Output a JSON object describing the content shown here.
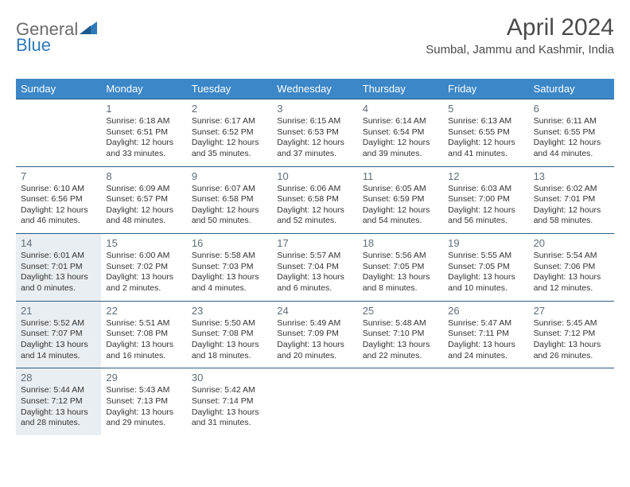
{
  "brand": {
    "part1": "General",
    "part2": "Blue"
  },
  "title": "April 2024",
  "location": "Sumbal, Jammu and Kashmir, India",
  "colors": {
    "header_bg": "#3b87c8",
    "header_text": "#ffffff",
    "border": "#2e5d82",
    "daynum": "#5f6e7a",
    "highlight_bg": "#e9eef2",
    "logo_gray": "#6b6b6b",
    "logo_blue": "#2e79b8"
  },
  "day_names": [
    "Sunday",
    "Monday",
    "Tuesday",
    "Wednesday",
    "Thursday",
    "Friday",
    "Saturday"
  ],
  "weeks": [
    [
      {
        "day": "",
        "lines": []
      },
      {
        "day": "1",
        "lines": [
          "Sunrise: 6:18 AM",
          "Sunset: 6:51 PM",
          "Daylight: 12 hours",
          "and 33 minutes."
        ]
      },
      {
        "day": "2",
        "lines": [
          "Sunrise: 6:17 AM",
          "Sunset: 6:52 PM",
          "Daylight: 12 hours",
          "and 35 minutes."
        ]
      },
      {
        "day": "3",
        "lines": [
          "Sunrise: 6:15 AM",
          "Sunset: 6:53 PM",
          "Daylight: 12 hours",
          "and 37 minutes."
        ]
      },
      {
        "day": "4",
        "lines": [
          "Sunrise: 6:14 AM",
          "Sunset: 6:54 PM",
          "Daylight: 12 hours",
          "and 39 minutes."
        ]
      },
      {
        "day": "5",
        "lines": [
          "Sunrise: 6:13 AM",
          "Sunset: 6:55 PM",
          "Daylight: 12 hours",
          "and 41 minutes."
        ]
      },
      {
        "day": "6",
        "lines": [
          "Sunrise: 6:11 AM",
          "Sunset: 6:55 PM",
          "Daylight: 12 hours",
          "and 44 minutes."
        ]
      }
    ],
    [
      {
        "day": "7",
        "lines": [
          "Sunrise: 6:10 AM",
          "Sunset: 6:56 PM",
          "Daylight: 12 hours",
          "and 46 minutes."
        ]
      },
      {
        "day": "8",
        "lines": [
          "Sunrise: 6:09 AM",
          "Sunset: 6:57 PM",
          "Daylight: 12 hours",
          "and 48 minutes."
        ]
      },
      {
        "day": "9",
        "lines": [
          "Sunrise: 6:07 AM",
          "Sunset: 6:58 PM",
          "Daylight: 12 hours",
          "and 50 minutes."
        ]
      },
      {
        "day": "10",
        "lines": [
          "Sunrise: 6:06 AM",
          "Sunset: 6:58 PM",
          "Daylight: 12 hours",
          "and 52 minutes."
        ]
      },
      {
        "day": "11",
        "lines": [
          "Sunrise: 6:05 AM",
          "Sunset: 6:59 PM",
          "Daylight: 12 hours",
          "and 54 minutes."
        ]
      },
      {
        "day": "12",
        "lines": [
          "Sunrise: 6:03 AM",
          "Sunset: 7:00 PM",
          "Daylight: 12 hours",
          "and 56 minutes."
        ]
      },
      {
        "day": "13",
        "lines": [
          "Sunrise: 6:02 AM",
          "Sunset: 7:01 PM",
          "Daylight: 12 hours",
          "and 58 minutes."
        ]
      }
    ],
    [
      {
        "day": "14",
        "highlight": true,
        "lines": [
          "Sunrise: 6:01 AM",
          "Sunset: 7:01 PM",
          "Daylight: 13 hours",
          "and 0 minutes."
        ]
      },
      {
        "day": "15",
        "lines": [
          "Sunrise: 6:00 AM",
          "Sunset: 7:02 PM",
          "Daylight: 13 hours",
          "and 2 minutes."
        ]
      },
      {
        "day": "16",
        "lines": [
          "Sunrise: 5:58 AM",
          "Sunset: 7:03 PM",
          "Daylight: 13 hours",
          "and 4 minutes."
        ]
      },
      {
        "day": "17",
        "lines": [
          "Sunrise: 5:57 AM",
          "Sunset: 7:04 PM",
          "Daylight: 13 hours",
          "and 6 minutes."
        ]
      },
      {
        "day": "18",
        "lines": [
          "Sunrise: 5:56 AM",
          "Sunset: 7:05 PM",
          "Daylight: 13 hours",
          "and 8 minutes."
        ]
      },
      {
        "day": "19",
        "lines": [
          "Sunrise: 5:55 AM",
          "Sunset: 7:05 PM",
          "Daylight: 13 hours",
          "and 10 minutes."
        ]
      },
      {
        "day": "20",
        "lines": [
          "Sunrise: 5:54 AM",
          "Sunset: 7:06 PM",
          "Daylight: 13 hours",
          "and 12 minutes."
        ]
      }
    ],
    [
      {
        "day": "21",
        "highlight": true,
        "lines": [
          "Sunrise: 5:52 AM",
          "Sunset: 7:07 PM",
          "Daylight: 13 hours",
          "and 14 minutes."
        ]
      },
      {
        "day": "22",
        "lines": [
          "Sunrise: 5:51 AM",
          "Sunset: 7:08 PM",
          "Daylight: 13 hours",
          "and 16 minutes."
        ]
      },
      {
        "day": "23",
        "lines": [
          "Sunrise: 5:50 AM",
          "Sunset: 7:08 PM",
          "Daylight: 13 hours",
          "and 18 minutes."
        ]
      },
      {
        "day": "24",
        "lines": [
          "Sunrise: 5:49 AM",
          "Sunset: 7:09 PM",
          "Daylight: 13 hours",
          "and 20 minutes."
        ]
      },
      {
        "day": "25",
        "lines": [
          "Sunrise: 5:48 AM",
          "Sunset: 7:10 PM",
          "Daylight: 13 hours",
          "and 22 minutes."
        ]
      },
      {
        "day": "26",
        "lines": [
          "Sunrise: 5:47 AM",
          "Sunset: 7:11 PM",
          "Daylight: 13 hours",
          "and 24 minutes."
        ]
      },
      {
        "day": "27",
        "lines": [
          "Sunrise: 5:45 AM",
          "Sunset: 7:12 PM",
          "Daylight: 13 hours",
          "and 26 minutes."
        ]
      }
    ],
    [
      {
        "day": "28",
        "highlight": true,
        "lines": [
          "Sunrise: 5:44 AM",
          "Sunset: 7:12 PM",
          "Daylight: 13 hours",
          "and 28 minutes."
        ]
      },
      {
        "day": "29",
        "lines": [
          "Sunrise: 5:43 AM",
          "Sunset: 7:13 PM",
          "Daylight: 13 hours",
          "and 29 minutes."
        ]
      },
      {
        "day": "30",
        "lines": [
          "Sunrise: 5:42 AM",
          "Sunset: 7:14 PM",
          "Daylight: 13 hours",
          "and 31 minutes."
        ]
      },
      {
        "day": "",
        "lines": []
      },
      {
        "day": "",
        "lines": []
      },
      {
        "day": "",
        "lines": []
      },
      {
        "day": "",
        "lines": []
      }
    ]
  ]
}
